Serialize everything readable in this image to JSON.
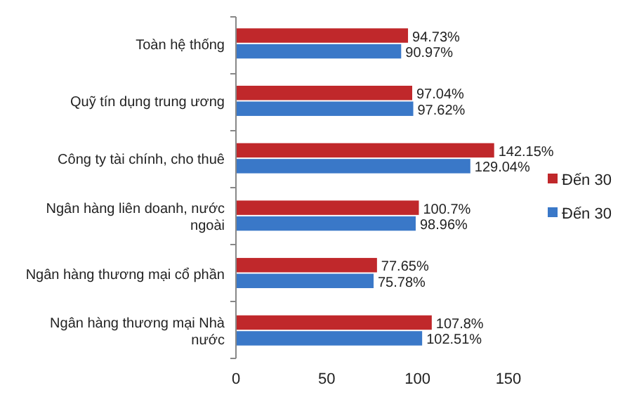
{
  "chart_data": {
    "type": "bar",
    "orientation": "horizontal",
    "categories": [
      "Toàn hệ thống",
      "Quỹ tín dụng trung ương",
      "Công ty tài chính, cho thuê",
      "Ngân hàng liên doanh, nước ngoài",
      "Ngân hàng thương mại cổ phần",
      "Ngân hàng thương mại Nhà nước"
    ],
    "series": [
      {
        "name": "Đến 30",
        "color": "#c0282b",
        "values": [
          94.73,
          97.04,
          142.15,
          100.7,
          77.65,
          107.8
        ],
        "value_labels": [
          "94.73%",
          "97.04%",
          "142.15%",
          "100.7%",
          "77.65%",
          "107.8%"
        ]
      },
      {
        "name": "Đến 30",
        "color": "#3a78c8",
        "values": [
          90.97,
          97.62,
          129.04,
          98.96,
          75.78,
          102.51
        ],
        "value_labels": [
          "90.97%",
          "97.62%",
          "129.04%",
          "98.96%",
          "75.78%",
          "102.51%"
        ]
      }
    ],
    "xlim": [
      0,
      150
    ],
    "xticks": [
      0,
      50,
      100,
      150
    ],
    "grid": false,
    "legend": "right"
  }
}
